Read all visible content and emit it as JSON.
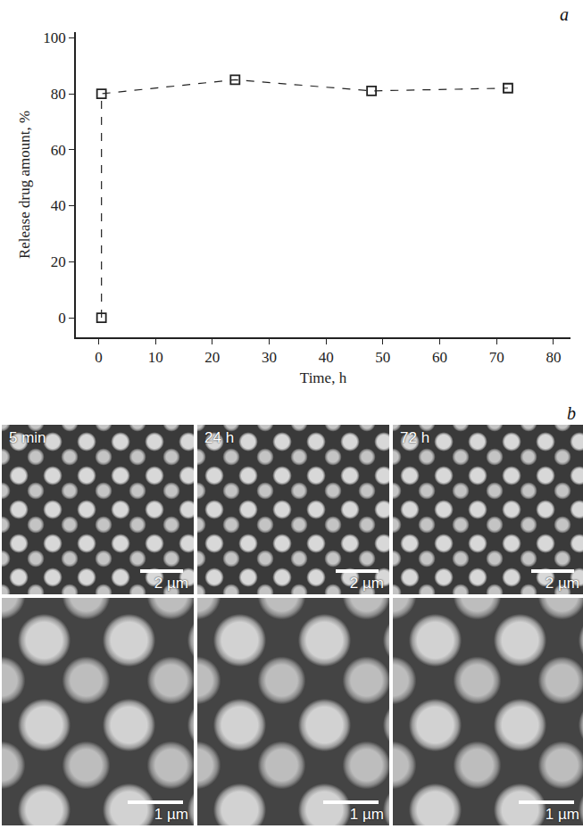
{
  "chart_data": {
    "type": "line",
    "annotations": [
      {
        "text": "a"
      }
    ],
    "x_label": "Time, h",
    "y_label": "Release drug amount, %",
    "series": [
      {
        "name": "release",
        "color": "#222222",
        "marker": "square-open",
        "line_style": "dash",
        "x": [
          0.5,
          0.5,
          24,
          48,
          72
        ],
        "values": [
          0,
          80,
          85,
          81,
          82
        ]
      }
    ],
    "xlim": [
      -4,
      83
    ],
    "xticks": [
      0,
      10,
      20,
      30,
      40,
      50,
      60,
      70,
      80
    ],
    "ylim": [
      -7,
      102
    ],
    "yticks": [
      0,
      20,
      40,
      60,
      80,
      100
    ],
    "grid": false
  },
  "panel_b": {
    "label": "b",
    "images": [
      [
        {
          "tag": "5 min",
          "scale_bar": "2 µm"
        },
        {
          "tag": "24 h",
          "scale_bar": "2 µm"
        },
        {
          "tag": "72 h",
          "scale_bar": "2 µm"
        }
      ],
      [
        {
          "scale_bar": "1 µm"
        },
        {
          "scale_bar": "1 µm"
        },
        {
          "scale_bar": "1 µm"
        }
      ]
    ]
  }
}
